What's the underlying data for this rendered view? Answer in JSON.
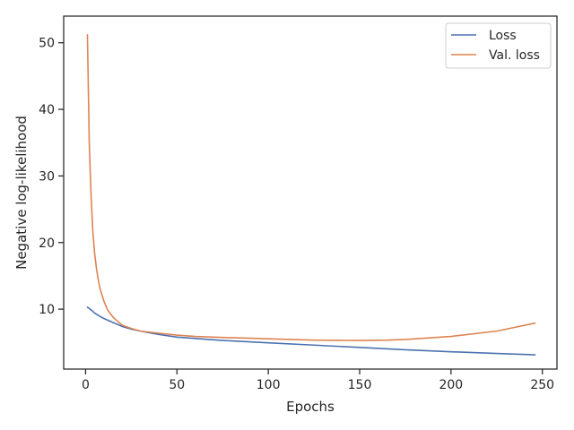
{
  "chart_data": {
    "type": "line",
    "xlabel": "Epochs",
    "ylabel": "Negative log-likelihood",
    "xlim": [
      -12,
      258
    ],
    "ylim": [
      1,
      54
    ],
    "xticks": [
      0,
      50,
      100,
      150,
      200,
      250
    ],
    "yticks": [
      10,
      20,
      30,
      40,
      50
    ],
    "grid": false,
    "legend_position": "top-right",
    "series": [
      {
        "name": "Loss",
        "color": "#4c72b0",
        "x": [
          1,
          3,
          5,
          8,
          10,
          15,
          20,
          25,
          30,
          40,
          50,
          60,
          75,
          100,
          125,
          150,
          175,
          200,
          225,
          246
        ],
        "y": [
          10.3,
          9.9,
          9.4,
          8.9,
          8.6,
          8.0,
          7.4,
          7.0,
          6.7,
          6.2,
          5.8,
          5.6,
          5.3,
          4.95,
          4.6,
          4.25,
          3.9,
          3.6,
          3.35,
          3.15
        ]
      },
      {
        "name": "Val. loss",
        "color": "#dd8452",
        "x": [
          1,
          2,
          3,
          4,
          5,
          6,
          7,
          8,
          10,
          12,
          15,
          20,
          25,
          30,
          40,
          50,
          60,
          75,
          100,
          125,
          150,
          165,
          175,
          200,
          225,
          246
        ],
        "y": [
          51.2,
          35.0,
          27.0,
          21.5,
          18.2,
          16.0,
          14.3,
          13.0,
          11.2,
          9.9,
          8.8,
          7.6,
          7.1,
          6.7,
          6.4,
          6.1,
          5.9,
          5.75,
          5.55,
          5.35,
          5.3,
          5.35,
          5.45,
          5.9,
          6.7,
          7.9
        ]
      }
    ]
  }
}
